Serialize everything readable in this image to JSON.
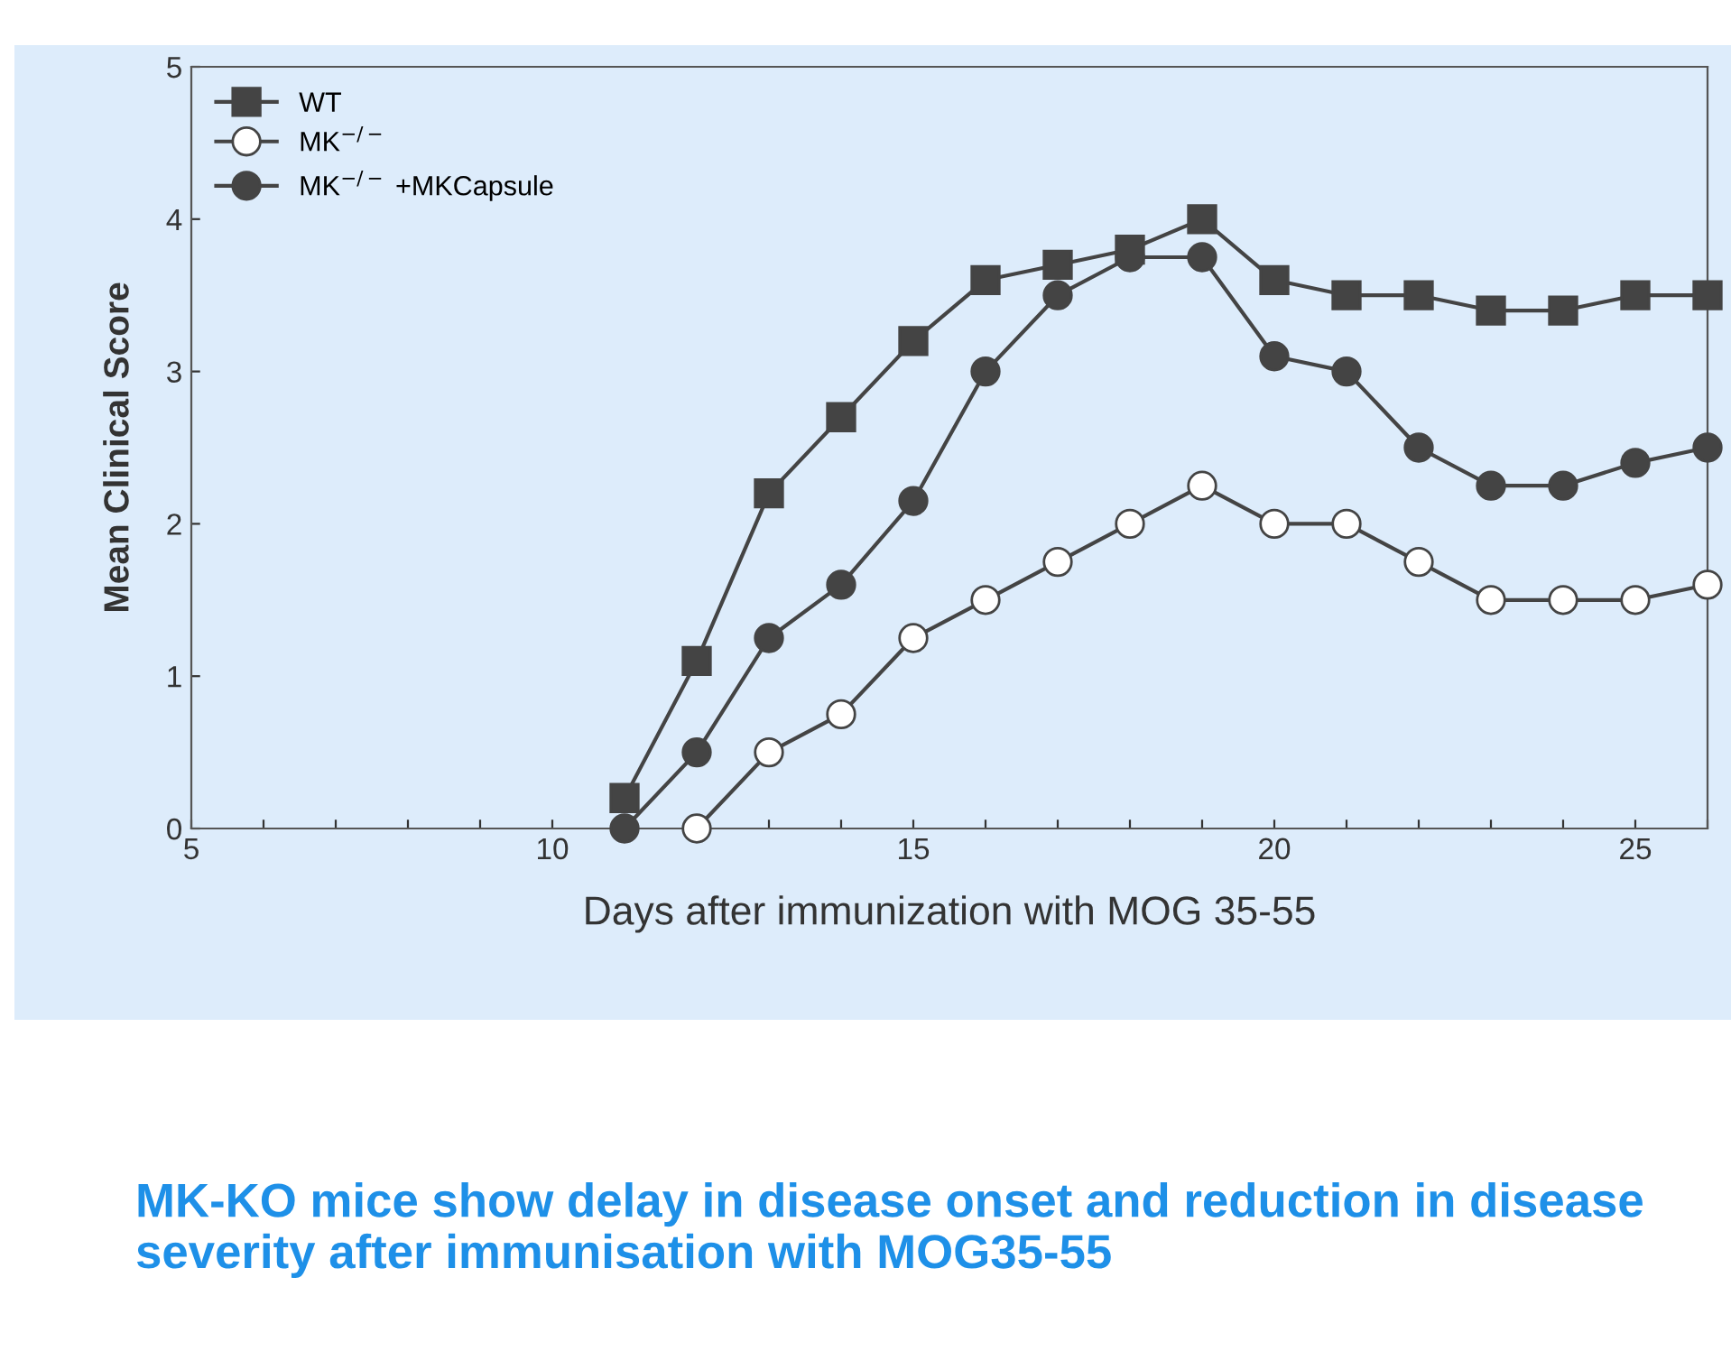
{
  "chart_data": {
    "type": "line",
    "title": "MK-KO mice show delay in disease onset and reduction in disease severity after immunisation with MOG35-55",
    "xlabel": "Days after immunization with MOG 35-55",
    "ylabel": "Mean Clinical Score",
    "xlim": [
      5,
      26
    ],
    "ylim": [
      0,
      5
    ],
    "xticks": [
      5,
      {
        "value": 6,
        "label": null
      },
      {
        "value": 7,
        "label": null
      },
      {
        "value": 8,
        "label": null
      },
      {
        "value": 9,
        "label": null
      },
      10,
      {
        "value": 11,
        "label": null
      },
      {
        "value": 12,
        "label": null
      },
      {
        "value": 13,
        "label": null
      },
      {
        "value": 14,
        "label": null
      },
      15,
      {
        "value": 16,
        "label": null
      },
      {
        "value": 17,
        "label": null
      },
      {
        "value": 18,
        "label": null
      },
      {
        "value": 19,
        "label": null
      },
      20,
      {
        "value": 21,
        "label": null
      },
      {
        "value": 22,
        "label": null
      },
      {
        "value": 23,
        "label": null
      },
      {
        "value": 24,
        "label": null
      },
      25,
      {
        "value": 26,
        "label": null
      }
    ],
    "yticks": [
      0,
      1,
      2,
      3,
      4,
      5
    ],
    "grid": false,
    "legend": "top left",
    "series": [
      {
        "name": "WT",
        "color": "#444444",
        "marker": "square",
        "x": [
          11,
          12,
          13,
          14,
          15,
          16,
          17,
          18,
          19,
          20,
          21,
          22,
          23,
          24,
          25,
          26
        ],
        "values": [
          0.2,
          1.1,
          2.2,
          2.7,
          3.2,
          3.6,
          3.7,
          3.8,
          4.0,
          3.6,
          3.5,
          3.5,
          3.4,
          3.4,
          3.5,
          3.5
        ]
      },
      {
        "name": "MK$^{−/−}$",
        "color": "#ffffff",
        "marker": "circle",
        "x": [
          12,
          13,
          14,
          15,
          16,
          17,
          18,
          19,
          20,
          21,
          22,
          23,
          24,
          25,
          26
        ],
        "values": [
          0,
          0.5,
          0.75,
          1.25,
          1.5,
          1.75,
          2.0,
          2.25,
          2.0,
          2.0,
          1.75,
          1.5,
          1.5,
          1.5,
          1.6
        ]
      },
      {
        "name": "MK$^{−/−}$ +MKCapsule",
        "color": "#444444",
        "marker": "circle",
        "x": [
          11,
          12,
          13,
          14,
          15,
          16,
          17,
          18,
          19,
          20,
          21,
          22,
          23,
          24,
          25,
          26
        ],
        "values": [
          0,
          0.5,
          1.25,
          1.6,
          2.15,
          3.0,
          3.5,
          3.75,
          3.75,
          3.1,
          3.0,
          2.5,
          2.25,
          2.25,
          2.4,
          2.5
        ]
      }
    ]
  }
}
